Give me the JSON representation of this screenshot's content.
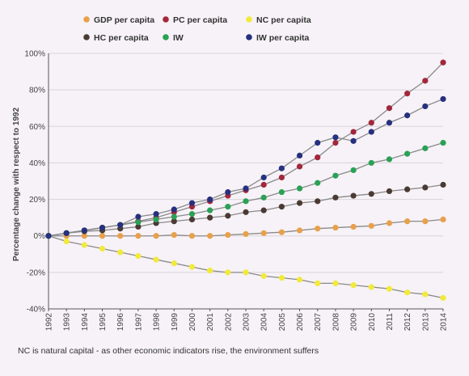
{
  "chart_data": {
    "type": "line",
    "title": "",
    "xlabel": "",
    "ylabel": "Percentage change with respect to 1992",
    "ylim": [
      -40,
      100
    ],
    "yticks": [
      "100%",
      "80%",
      "60%",
      "40%",
      "20%",
      "0%",
      "-20%",
      "-40%"
    ],
    "ytick_values": [
      100,
      80,
      60,
      40,
      20,
      0,
      -20,
      -40
    ],
    "x": [
      "1992",
      "1993",
      "1994",
      "1995",
      "1996",
      "1997",
      "1998",
      "1999",
      "2000",
      "2001",
      "2002",
      "2003",
      "2004",
      "2005",
      "2006",
      "2007",
      "2008",
      "2009",
      "2010",
      "2011",
      "2012",
      "2013",
      "2014"
    ],
    "grid": "horizontal",
    "legend_position": "top",
    "series": [
      {
        "name": "GDP per capita",
        "color": "#e8a04a",
        "values": [
          0,
          0,
          0,
          0,
          0,
          0,
          0,
          0.5,
          0,
          0,
          0.5,
          1,
          1.5,
          2,
          3,
          4,
          4.5,
          5,
          5.5,
          7,
          8,
          8,
          9
        ]
      },
      {
        "name": "PC per capita",
        "color": "#a3273b",
        "values": [
          0,
          1.5,
          3,
          4.5,
          6,
          8,
          10,
          13,
          16,
          19,
          22,
          25,
          28,
          32,
          38,
          43,
          51,
          57,
          62,
          70,
          78,
          85,
          95
        ]
      },
      {
        "name": "NC per capita",
        "color": "#f2ea3a",
        "values": [
          0,
          -3,
          -5,
          -7,
          -9,
          -11,
          -13,
          -15,
          -17,
          -19,
          -20,
          -20,
          -22,
          -23,
          -24,
          -26,
          -26,
          -27,
          -28,
          -29,
          -31,
          -32,
          -34
        ]
      },
      {
        "name": "HC per capita",
        "color": "#4a3a33",
        "values": [
          0,
          1.5,
          2.5,
          3,
          4,
          5,
          7,
          8,
          9,
          10,
          11,
          13,
          14,
          16,
          18,
          19,
          21,
          22,
          23,
          24.5,
          25.5,
          26.5,
          28
        ]
      },
      {
        "name": "IW",
        "color": "#2aa155",
        "values": [
          0,
          1.5,
          3,
          4.5,
          6,
          7.5,
          9,
          10.5,
          12,
          14,
          16,
          19,
          21,
          24,
          26,
          29,
          33,
          36,
          40,
          42,
          45,
          48,
          51
        ]
      },
      {
        "name": "IW per capita",
        "color": "#26307f",
        "values": [
          0,
          1.5,
          3,
          4.5,
          6,
          10.5,
          12,
          14.5,
          18,
          20,
          24,
          26,
          32,
          37,
          44,
          51,
          54,
          52,
          57,
          62,
          66,
          71,
          75
        ]
      }
    ]
  },
  "caption": "NC is natural capital - as other economic indicators rise, the environment suffers"
}
